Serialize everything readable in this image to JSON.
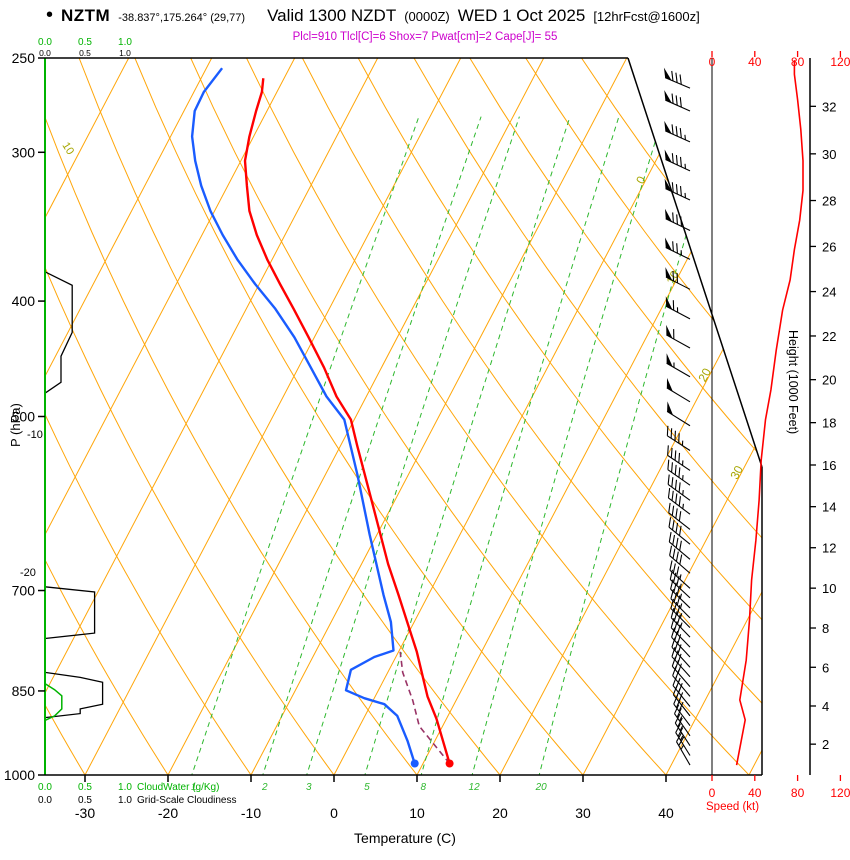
{
  "header": {
    "bullet": "•",
    "station": "NZTM",
    "coords": "-38.837°,175.264° (29,77)",
    "valid": "Valid 1300 NZDT",
    "zulu": "(0000Z)",
    "date": "WED 1 Oct 2025",
    "fcst": "[12hrFcst@1600z]",
    "params": "Plcl=910 Tlcl[C]=6 Shox=7 Pwat[cm]=2 Cape[J]= 55"
  },
  "axis_labels": {
    "pressure": "P (hPa)",
    "temperature": "Temperature (C)",
    "height": "Height (1000 Feet)",
    "speed": "Speed (kt)"
  },
  "chart_data": {
    "type": "line",
    "subtype": "skew-t log-p sounding",
    "title": "NZTM sounding valid 1300 NZDT (0000Z) WED 1 Oct 2025, 12hr forecast",
    "pressure_axis": {
      "label": "P (hPa)",
      "scale": "log",
      "ticks": [
        250,
        300,
        400,
        500,
        700,
        850,
        1000
      ]
    },
    "temperature_axis": {
      "label": "Temperature (C)",
      "unit": "C",
      "ticks": [
        -30,
        -20,
        -10,
        0,
        10,
        20,
        30,
        40
      ]
    },
    "height_axis": {
      "label": "Height (1000 Feet)",
      "ticks": [
        2,
        4,
        6,
        8,
        10,
        12,
        14,
        16,
        18,
        20,
        22,
        24,
        26,
        28,
        30,
        32
      ]
    },
    "speed_axis": {
      "label": "Speed (kt)",
      "ticks": [
        0,
        40,
        80,
        120
      ]
    },
    "cloud_axes": {
      "ticks": [
        "0.0",
        "0.5",
        "1.0"
      ],
      "cloudwater_label": "CloudWater (g/Kg)",
      "cloudiness_label": "Grid-Scale Cloudiness"
    },
    "grid": {
      "isotherm_step_C": 10,
      "isotherm_exit_labels_C": [
        0,
        10,
        20,
        30
      ],
      "dry_adiabat_step_C": 10,
      "mixing_ratio_g_kg": [
        1,
        2,
        3,
        5,
        8,
        12,
        20
      ],
      "adiabat_labels": [
        {
          "text": "10",
          "x": 62,
          "y": 145,
          "rot": 58,
          "color": "#a6a600"
        },
        {
          "text": "-10",
          "x": 27,
          "y": 438,
          "rot": 0,
          "color": "#000000"
        },
        {
          "text": "-20",
          "x": 20,
          "y": 576,
          "rot": 0,
          "color": "#000000"
        }
      ]
    },
    "colors": {
      "grid_orange": "#ffa60a",
      "mixing_green": "#2eb82e",
      "cloudwater_green": "#00b300",
      "temperature_red": "#ff0000",
      "dewpoint_blue": "#1a5cff",
      "parcel_magenta": "#993366",
      "isotherm_label_olive": "#a6a600",
      "header_magenta": "#cc00cc",
      "speed_red": "#ff0000",
      "axis_black": "#000000"
    },
    "surface": {
      "pressure_hPa": 978,
      "temperature_C": 13.2,
      "dewpoint_C": 9.0
    },
    "series": {
      "temperature_C": [
        [
          978,
          13.2
        ],
        [
          897,
          8.8
        ],
        [
          859,
          6.3
        ],
        [
          788,
          2.2
        ],
        [
          743,
          -0.9
        ],
        [
          706,
          -3.6
        ],
        [
          665,
          -6.8
        ],
        [
          593,
          -12.4
        ],
        [
          529,
          -18.0
        ],
        [
          503,
          -20.4
        ],
        [
          481,
          -23.6
        ],
        [
          455,
          -26.9
        ],
        [
          429,
          -30.7
        ],
        [
          406,
          -34.3
        ],
        [
          387,
          -37.5
        ],
        [
          369,
          -40.6
        ],
        [
          352,
          -43.4
        ],
        [
          336,
          -45.8
        ],
        [
          320,
          -47.7
        ],
        [
          305,
          -49.5
        ],
        [
          291,
          -50.5
        ],
        [
          277,
          -51.3
        ],
        [
          267,
          -51.8
        ],
        [
          260,
          -52.5
        ]
      ],
      "dewpoint_C": [
        [
          978,
          9.0
        ],
        [
          936,
          6.7
        ],
        [
          892,
          3.9
        ],
        [
          872,
          1.6
        ],
        [
          862,
          -1.2
        ],
        [
          849,
          -3.9
        ],
        [
          816,
          -4.6
        ],
        [
          796,
          -2.6
        ],
        [
          786,
          -0.7
        ],
        [
          744,
          -2.8
        ],
        [
          706,
          -5.4
        ],
        [
          628,
          -10.9
        ],
        [
          560,
          -16.1
        ],
        [
          503,
          -21.2
        ],
        [
          481,
          -24.8
        ],
        [
          455,
          -28.5
        ],
        [
          429,
          -32.4
        ],
        [
          406,
          -36.5
        ],
        [
          387,
          -40.5
        ],
        [
          369,
          -44.2
        ],
        [
          352,
          -47.5
        ],
        [
          336,
          -50.5
        ],
        [
          320,
          -53.2
        ],
        [
          305,
          -55.5
        ],
        [
          291,
          -57.4
        ],
        [
          277,
          -58.7
        ],
        [
          267,
          -58.8
        ],
        [
          255,
          -58.1
        ]
      ],
      "parcel_C": [
        [
          978,
          13.2
        ],
        [
          910,
          7.2
        ],
        [
          866,
          4.8
        ],
        [
          820,
          1.8
        ],
        [
          788,
          0.2
        ]
      ],
      "wind_speed_kt": [
        [
          981,
          23
        ],
        [
          899,
          31
        ],
        [
          865,
          26
        ],
        [
          801,
          32
        ],
        [
          741,
          35
        ],
        [
          686,
          37
        ],
        [
          635,
          41
        ],
        [
          588,
          44
        ],
        [
          544,
          46
        ],
        [
          503,
          50
        ],
        [
          475,
          55
        ],
        [
          440,
          60
        ],
        [
          407,
          66
        ],
        [
          384,
          73
        ],
        [
          362,
          77
        ],
        [
          342,
          82
        ],
        [
          323,
          85
        ],
        [
          305,
          85
        ],
        [
          287,
          83
        ],
        [
          271,
          80
        ],
        [
          258,
          77
        ],
        [
          251,
          77
        ]
      ],
      "cloudiness": [
        [
          252,
          0
        ],
        [
          366,
          0
        ],
        [
          378,
          0
        ],
        [
          388,
          0.34
        ],
        [
          425,
          0.34
        ],
        [
          445,
          0.2
        ],
        [
          468,
          0.2
        ],
        [
          478,
          0
        ],
        [
          695,
          0
        ],
        [
          702,
          0.62
        ],
        [
          760,
          0.62
        ],
        [
          768,
          0
        ],
        [
          820,
          0
        ],
        [
          828,
          0.44
        ],
        [
          836,
          0.72
        ],
        [
          872,
          0.72
        ],
        [
          880,
          0.44
        ],
        [
          888,
          0.44
        ],
        [
          895,
          0
        ],
        [
          990,
          0
        ]
      ],
      "cloud_water_g_kg": [
        [
          252,
          0
        ],
        [
          838,
          0
        ],
        [
          848,
          0.12
        ],
        [
          858,
          0.21
        ],
        [
          880,
          0.21
        ],
        [
          892,
          0.12
        ],
        [
          900,
          0
        ],
        [
          990,
          0
        ]
      ],
      "wind_barbs": [
        [
          981,
          23,
          330
        ],
        [
          963,
          24,
          328
        ],
        [
          945,
          25,
          327
        ],
        [
          927,
          27,
          325
        ],
        [
          909,
          29,
          323
        ],
        [
          892,
          30,
          322
        ],
        [
          876,
          28,
          321
        ],
        [
          859,
          27,
          320
        ],
        [
          843,
          28,
          319
        ],
        [
          827,
          29,
          318
        ],
        [
          812,
          30,
          318
        ],
        [
          796,
          31,
          317
        ],
        [
          781,
          32,
          316
        ],
        [
          766,
          33,
          316
        ],
        [
          752,
          33,
          315
        ],
        [
          738,
          34,
          315
        ],
        [
          724,
          35,
          314
        ],
        [
          710,
          36,
          313
        ],
        [
          697,
          37,
          312
        ],
        [
          677,
          38,
          311
        ],
        [
          659,
          39,
          310
        ],
        [
          640,
          40,
          309
        ],
        [
          622,
          42,
          308
        ],
        [
          604,
          43,
          307
        ],
        [
          588,
          44,
          306
        ],
        [
          571,
          45,
          305
        ],
        [
          555,
          46,
          304
        ],
        [
          534,
          47,
          303
        ],
        [
          509,
          49,
          302
        ],
        [
          486,
          52,
          301
        ],
        [
          463,
          56,
          300
        ],
        [
          438,
          60,
          299
        ],
        [
          414,
          65,
          298
        ],
        [
          391,
          71,
          297
        ],
        [
          369,
          76,
          296
        ],
        [
          349,
          81,
          296
        ],
        [
          329,
          84,
          295
        ],
        [
          311,
          85,
          295
        ],
        [
          294,
          84,
          294
        ],
        [
          277,
          81,
          294
        ],
        [
          265,
          78,
          293
        ]
      ]
    }
  }
}
